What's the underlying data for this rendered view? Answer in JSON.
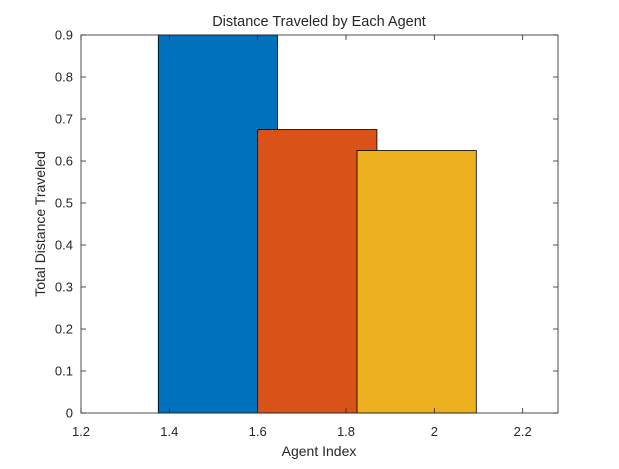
{
  "chart_data": {
    "type": "bar",
    "title": "Distance Traveled by Each Agent",
    "xlabel": "Agent Index",
    "ylabel": "Total Distance Traveled",
    "xlim": [
      1.2,
      2.28
    ],
    "ylim": [
      0,
      0.9
    ],
    "xticks": [
      1.2,
      1.4,
      1.6,
      1.8,
      2,
      2.2
    ],
    "xtick_labels": [
      "1.2",
      "1.4",
      "1.6",
      "1.8",
      "2",
      "2.2"
    ],
    "yticks": [
      0,
      0.1,
      0.2,
      0.3,
      0.4,
      0.5,
      0.6,
      0.7,
      0.8,
      0.9
    ],
    "ytick_labels": [
      "0",
      "0.1",
      "0.2",
      "0.3",
      "0.4",
      "0.5",
      "0.6",
      "0.7",
      "0.8",
      "0.9"
    ],
    "grid": false,
    "bars": [
      {
        "x_start": 1.375,
        "x_end": 1.645,
        "value": 0.9,
        "color": "#0072BD"
      },
      {
        "x_start": 1.6,
        "x_end": 1.87,
        "value": 0.675,
        "color": "#D95319"
      },
      {
        "x_start": 1.825,
        "x_end": 2.095,
        "value": 0.625,
        "color": "#EDB120"
      }
    ]
  }
}
